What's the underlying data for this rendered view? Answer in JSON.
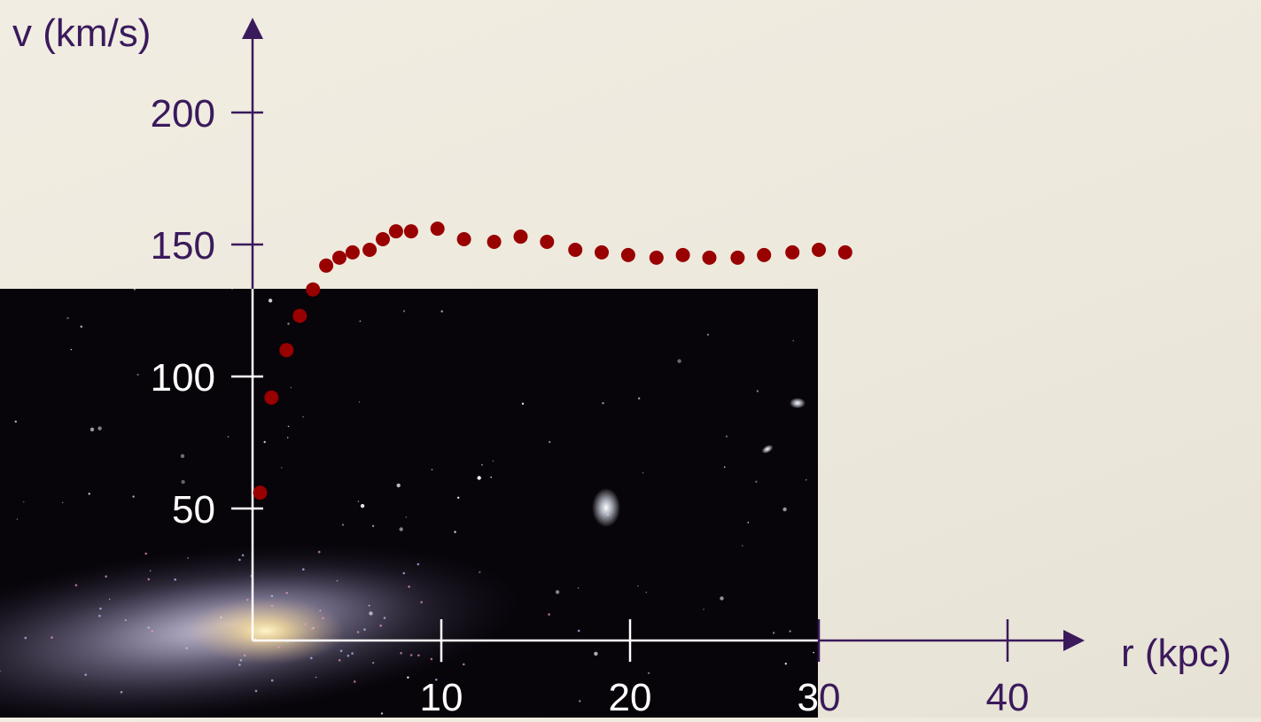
{
  "chart_data": {
    "type": "scatter",
    "title": "",
    "xlabel": "r (kpc)",
    "ylabel": "v (km/s)",
    "xlim": [
      0,
      44
    ],
    "ylim": [
      0,
      230
    ],
    "xticks": [
      10,
      20,
      30,
      40
    ],
    "yticks": [
      50,
      100,
      150,
      200
    ],
    "grid": false,
    "background_image": "galaxy-photo",
    "colors": {
      "axis": "#3a1a5c",
      "axis_on_photo": "#ffffff",
      "points": "#990000",
      "photo_bg": "#07040a"
    },
    "series": [
      {
        "points": [
          {
            "x": 0.4,
            "y": 56
          },
          {
            "x": 1.0,
            "y": 92
          },
          {
            "x": 1.8,
            "y": 110
          },
          {
            "x": 2.5,
            "y": 123
          },
          {
            "x": 3.2,
            "y": 133
          },
          {
            "x": 3.9,
            "y": 142
          },
          {
            "x": 4.6,
            "y": 145
          },
          {
            "x": 5.3,
            "y": 147
          },
          {
            "x": 6.2,
            "y": 148
          },
          {
            "x": 6.9,
            "y": 152
          },
          {
            "x": 7.6,
            "y": 155
          },
          {
            "x": 8.4,
            "y": 155
          },
          {
            "x": 9.8,
            "y": 156
          },
          {
            "x": 11.2,
            "y": 152
          },
          {
            "x": 12.8,
            "y": 151
          },
          {
            "x": 14.2,
            "y": 153
          },
          {
            "x": 15.6,
            "y": 151
          },
          {
            "x": 17.1,
            "y": 148
          },
          {
            "x": 18.5,
            "y": 147
          },
          {
            "x": 19.9,
            "y": 146
          },
          {
            "x": 21.4,
            "y": 145
          },
          {
            "x": 22.8,
            "y": 146
          },
          {
            "x": 24.2,
            "y": 145
          },
          {
            "x": 25.7,
            "y": 145
          },
          {
            "x": 27.1,
            "y": 146
          },
          {
            "x": 28.6,
            "y": 147
          },
          {
            "x": 30.0,
            "y": 148
          },
          {
            "x": 31.4,
            "y": 147
          }
        ]
      }
    ]
  }
}
